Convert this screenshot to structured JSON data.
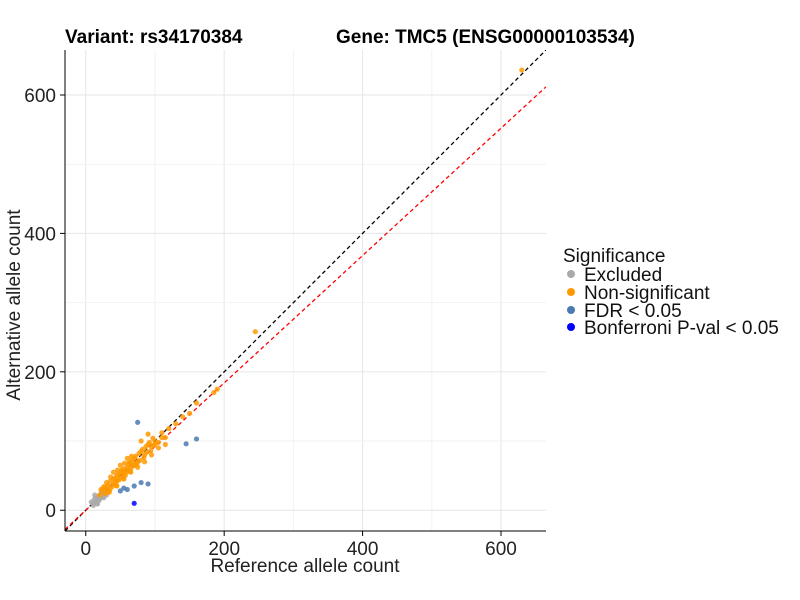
{
  "chart_data": {
    "type": "scatter",
    "title_variant": "Variant: rs34170384",
    "title_gene": "Gene: TMC5 (ENSG00000103534)",
    "xlabel": "Reference allele count",
    "ylabel": "Alternative allele count",
    "xlim": [
      -30,
      665
    ],
    "ylim": [
      -30,
      665
    ],
    "xticks": [
      0,
      200,
      400,
      600
    ],
    "yticks": [
      0,
      200,
      400,
      600
    ],
    "tick_labels_x": [
      "0",
      "200",
      "400",
      "600"
    ],
    "tick_labels_y": [
      "0",
      "200",
      "400",
      "600"
    ],
    "grid": true,
    "reference_lines": [
      {
        "name": "identity",
        "slope": 1.0,
        "intercept": 0,
        "color": "#000000",
        "style": "dashed"
      },
      {
        "name": "expected-ratio",
        "slope": 0.92,
        "intercept": 0,
        "color": "#ff0000",
        "style": "dashed"
      }
    ],
    "legend": {
      "title": "Significance",
      "position": "right",
      "entries": [
        {
          "label": "Excluded",
          "color": "#aaaaaa"
        },
        {
          "label": "Non-significant",
          "color": "#ff9900"
        },
        {
          "label": "FDR < 0.05",
          "color": "#4a7ab0"
        },
        {
          "label": "Bonferroni P-val < 0.05",
          "color": "#0000ff"
        }
      ]
    },
    "series": [
      {
        "name": "Excluded",
        "color": "#aaaaaa",
        "points": [
          [
            10,
            10
          ],
          [
            12,
            15
          ],
          [
            15,
            12
          ],
          [
            18,
            20
          ],
          [
            20,
            16
          ],
          [
            22,
            24
          ],
          [
            14,
            18
          ],
          [
            25,
            20
          ],
          [
            16,
            10
          ],
          [
            28,
            26
          ],
          [
            8,
            12
          ],
          [
            19,
            14
          ],
          [
            24,
            30
          ],
          [
            30,
            22
          ],
          [
            11,
            7
          ],
          [
            21,
            19
          ],
          [
            26,
            18
          ],
          [
            13,
            22
          ],
          [
            17,
            9
          ],
          [
            23,
            27
          ]
        ]
      },
      {
        "name": "Non-significant",
        "color": "#ff9900",
        "points": [
          [
            20,
            22
          ],
          [
            25,
            28
          ],
          [
            30,
            32
          ],
          [
            35,
            30
          ],
          [
            40,
            45
          ],
          [
            45,
            42
          ],
          [
            50,
            55
          ],
          [
            55,
            52
          ],
          [
            60,
            62
          ],
          [
            65,
            60
          ],
          [
            70,
            75
          ],
          [
            75,
            70
          ],
          [
            80,
            85
          ],
          [
            85,
            80
          ],
          [
            90,
            95
          ],
          [
            95,
            92
          ],
          [
            100,
            100
          ],
          [
            105,
            98
          ],
          [
            110,
            112
          ],
          [
            30,
            40
          ],
          [
            35,
            42
          ],
          [
            40,
            38
          ],
          [
            45,
            50
          ],
          [
            50,
            48
          ],
          [
            55,
            60
          ],
          [
            60,
            58
          ],
          [
            65,
            68
          ],
          [
            70,
            65
          ],
          [
            28,
            24
          ],
          [
            32,
            36
          ],
          [
            38,
            34
          ],
          [
            42,
            46
          ],
          [
            48,
            44
          ],
          [
            52,
            58
          ],
          [
            58,
            54
          ],
          [
            62,
            66
          ],
          [
            68,
            64
          ],
          [
            72,
            78
          ],
          [
            78,
            72
          ],
          [
            82,
            88
          ],
          [
            88,
            84
          ],
          [
            92,
            98
          ],
          [
            98,
            94
          ],
          [
            22,
            30
          ],
          [
            26,
            34
          ],
          [
            34,
            26
          ],
          [
            44,
            36
          ],
          [
            54,
            46
          ],
          [
            64,
            56
          ],
          [
            74,
            66
          ],
          [
            84,
            76
          ],
          [
            94,
            86
          ],
          [
            36,
            48
          ],
          [
            46,
            58
          ],
          [
            56,
            68
          ],
          [
            66,
            78
          ],
          [
            40,
            55
          ],
          [
            50,
            65
          ],
          [
            60,
            75
          ],
          [
            45,
            35
          ],
          [
            55,
            45
          ],
          [
            65,
            55
          ],
          [
            75,
            62
          ],
          [
            85,
            70
          ],
          [
            95,
            80
          ],
          [
            105,
            90
          ],
          [
            115,
            105
          ],
          [
            120,
            118
          ],
          [
            130,
            125
          ],
          [
            140,
            135
          ],
          [
            150,
            140
          ],
          [
            160,
            155
          ],
          [
            185,
            170
          ],
          [
            190,
            175
          ],
          [
            245,
            258
          ],
          [
            630,
            636
          ],
          [
            80,
            100
          ],
          [
            90,
            110
          ],
          [
            100,
            95
          ],
          [
            110,
            105
          ],
          [
            115,
            95
          ],
          [
            33,
            28
          ],
          [
            27,
            33
          ],
          [
            47,
            52
          ],
          [
            57,
            50
          ],
          [
            67,
            72
          ],
          [
            77,
            82
          ],
          [
            87,
            92
          ],
          [
            97,
            104
          ],
          [
            43,
            40
          ],
          [
            53,
            56
          ],
          [
            63,
            70
          ],
          [
            73,
            68
          ]
        ]
      },
      {
        "name": "FDR < 0.05",
        "color": "#4a7ab0",
        "points": [
          [
            75,
            127
          ],
          [
            160,
            103
          ],
          [
            145,
            96
          ],
          [
            80,
            40
          ],
          [
            90,
            38
          ],
          [
            60,
            30
          ],
          [
            70,
            35
          ],
          [
            50,
            28
          ],
          [
            55,
            32
          ]
        ]
      },
      {
        "name": "Bonferroni P-val < 0.05",
        "color": "#0000ff",
        "points": [
          [
            70,
            10
          ]
        ]
      }
    ]
  }
}
